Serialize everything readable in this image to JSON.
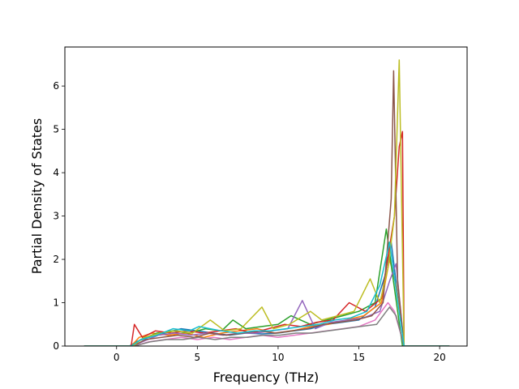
{
  "chart_data": {
    "type": "line",
    "title": "",
    "xlabel": "Frequency (THz)",
    "ylabel": "Partial Density of States",
    "xlim": [
      -3.2,
      21.7
    ],
    "ylim": [
      0,
      6.9
    ],
    "x_ticks": [
      0,
      5,
      10,
      15,
      20
    ],
    "y_ticks": [
      0,
      1,
      2,
      3,
      4,
      5,
      6
    ],
    "grid": false,
    "legend": "none",
    "series_colors": [
      "#1f77b4",
      "#ff7f0e",
      "#2ca02c",
      "#d62728",
      "#9467bd",
      "#8c564b",
      "#e377c2",
      "#7f7f7f",
      "#bcbd22",
      "#17becf"
    ],
    "series": [
      {
        "color": "#1f77b4",
        "x": [
          -2,
          0.8,
          1.2,
          2,
          3,
          4,
          5,
          6,
          7,
          8,
          9,
          10,
          11,
          12,
          13,
          14,
          15,
          16,
          16.6,
          17.0,
          17.4,
          17.8,
          18.5,
          20.6
        ],
        "y": [
          0,
          0,
          0.1,
          0.2,
          0.3,
          0.4,
          0.35,
          0.3,
          0.25,
          0.3,
          0.28,
          0.3,
          0.35,
          0.4,
          0.5,
          0.55,
          0.6,
          0.9,
          1.6,
          2.4,
          1.2,
          0,
          0,
          0
        ]
      },
      {
        "color": "#ff7f0e",
        "x": [
          -2,
          0.9,
          1.4,
          2.2,
          3.2,
          4.3,
          5.4,
          6.5,
          7.6,
          8.7,
          9.8,
          10.9,
          12,
          13.1,
          14.2,
          15.3,
          16.4,
          16.9,
          17.3,
          17.8,
          20.6
        ],
        "y": [
          0,
          0,
          0.2,
          0.3,
          0.25,
          0.3,
          0.2,
          0.3,
          0.35,
          0.4,
          0.3,
          0.35,
          0.45,
          0.5,
          0.6,
          0.7,
          1.0,
          2.0,
          1.4,
          0,
          0
        ]
      },
      {
        "color": "#2ca02c",
        "x": [
          -2,
          0.9,
          1.5,
          2.5,
          3.5,
          4.5,
          5.5,
          6.5,
          7.2,
          8,
          9,
          10,
          10.8,
          12,
          13,
          14,
          15,
          16,
          16.7,
          17.1,
          17.7,
          20.6
        ],
        "y": [
          0,
          0,
          0.15,
          0.3,
          0.35,
          0.3,
          0.4,
          0.35,
          0.6,
          0.4,
          0.45,
          0.5,
          0.7,
          0.5,
          0.6,
          0.7,
          0.8,
          1.0,
          2.7,
          1.6,
          0,
          0
        ]
      },
      {
        "color": "#d62728",
        "x": [
          -2,
          0.9,
          1.1,
          1.6,
          2.4,
          3.4,
          4.4,
          5.4,
          6.4,
          7.4,
          8.4,
          9.4,
          10.4,
          11.4,
          12.4,
          13.4,
          14.4,
          15.4,
          16.4,
          17.2,
          17.5,
          17.7,
          17.8,
          20.6
        ],
        "y": [
          0,
          0,
          0.5,
          0.2,
          0.35,
          0.3,
          0.35,
          0.3,
          0.35,
          0.4,
          0.3,
          0.4,
          0.5,
          0.45,
          0.55,
          0.6,
          1.0,
          0.8,
          1.1,
          3.0,
          4.6,
          4.95,
          0,
          0
        ]
      },
      {
        "color": "#9467bd",
        "x": [
          -2,
          1.0,
          1.6,
          2.6,
          3.6,
          4.6,
          5.6,
          6.6,
          7.6,
          8.6,
          9.6,
          10.6,
          11.5,
          12.3,
          13.3,
          14.3,
          15.3,
          16.3,
          16.9,
          17.3,
          17.8,
          20.6
        ],
        "y": [
          0,
          0,
          0.1,
          0.25,
          0.3,
          0.25,
          0.3,
          0.25,
          0.3,
          0.3,
          0.35,
          0.4,
          1.05,
          0.4,
          0.55,
          0.6,
          0.65,
          0.8,
          1.5,
          1.9,
          0,
          0
        ]
      },
      {
        "color": "#8c564b",
        "x": [
          -2,
          1.0,
          1.8,
          2.8,
          3.8,
          4.8,
          5.8,
          6.8,
          7.8,
          8.8,
          9.8,
          10.8,
          11.8,
          12.8,
          13.8,
          14.8,
          15.8,
          16.5,
          17.0,
          17.15,
          17.4,
          17.8,
          20.6
        ],
        "y": [
          0,
          0,
          0.15,
          0.2,
          0.25,
          0.2,
          0.3,
          0.25,
          0.3,
          0.35,
          0.3,
          0.35,
          0.4,
          0.5,
          0.55,
          0.6,
          0.7,
          1.0,
          3.4,
          6.35,
          1.5,
          0,
          0
        ]
      },
      {
        "color": "#e377c2",
        "x": [
          -2,
          1.1,
          2,
          3,
          4,
          5,
          6,
          7,
          8,
          9,
          10,
          11,
          12,
          13,
          14,
          15,
          16,
          16.8,
          17.2,
          17.8,
          20.6
        ],
        "y": [
          0,
          0,
          0.1,
          0.15,
          0.2,
          0.15,
          0.2,
          0.15,
          0.2,
          0.25,
          0.2,
          0.25,
          0.3,
          0.35,
          0.4,
          0.45,
          0.6,
          1.0,
          0.8,
          0,
          0
        ]
      },
      {
        "color": "#7f7f7f",
        "x": [
          -2,
          1.1,
          2.1,
          3.1,
          4.1,
          5.1,
          6.1,
          7.1,
          8.1,
          9.1,
          10.1,
          11.1,
          12.1,
          13.1,
          14.1,
          15.1,
          16.1,
          16.9,
          17.3,
          17.8,
          20.6
        ],
        "y": [
          0,
          0,
          0.1,
          0.15,
          0.15,
          0.2,
          0.15,
          0.2,
          0.2,
          0.25,
          0.25,
          0.3,
          0.3,
          0.35,
          0.4,
          0.45,
          0.5,
          0.9,
          0.7,
          0,
          0
        ]
      },
      {
        "color": "#bcbd22",
        "x": [
          -2,
          1.0,
          1.7,
          2.7,
          3.7,
          4.7,
          5.8,
          6.7,
          7.7,
          9.0,
          9.7,
          10.7,
          12.0,
          12.7,
          13.7,
          14.7,
          15.7,
          16.3,
          16.8,
          17.2,
          17.5,
          17.8,
          20.6
        ],
        "y": [
          0,
          0,
          0.2,
          0.3,
          0.35,
          0.3,
          0.6,
          0.35,
          0.4,
          0.9,
          0.4,
          0.5,
          0.8,
          0.6,
          0.7,
          0.8,
          1.55,
          1.0,
          1.8,
          3.0,
          6.6,
          0,
          0
        ]
      },
      {
        "color": "#17becf",
        "x": [
          -2,
          0.9,
          1.5,
          2.5,
          3.5,
          4.5,
          5.1,
          6.5,
          7.5,
          8.5,
          9.5,
          10.5,
          11.5,
          12.5,
          13.5,
          14.5,
          15.5,
          16.3,
          16.9,
          17.3,
          17.8,
          20.6
        ],
        "y": [
          0,
          0,
          0.15,
          0.25,
          0.4,
          0.35,
          0.45,
          0.35,
          0.3,
          0.35,
          0.35,
          0.4,
          0.45,
          0.5,
          0.6,
          0.65,
          0.8,
          1.4,
          2.4,
          1.3,
          0,
          0
        ]
      }
    ]
  }
}
